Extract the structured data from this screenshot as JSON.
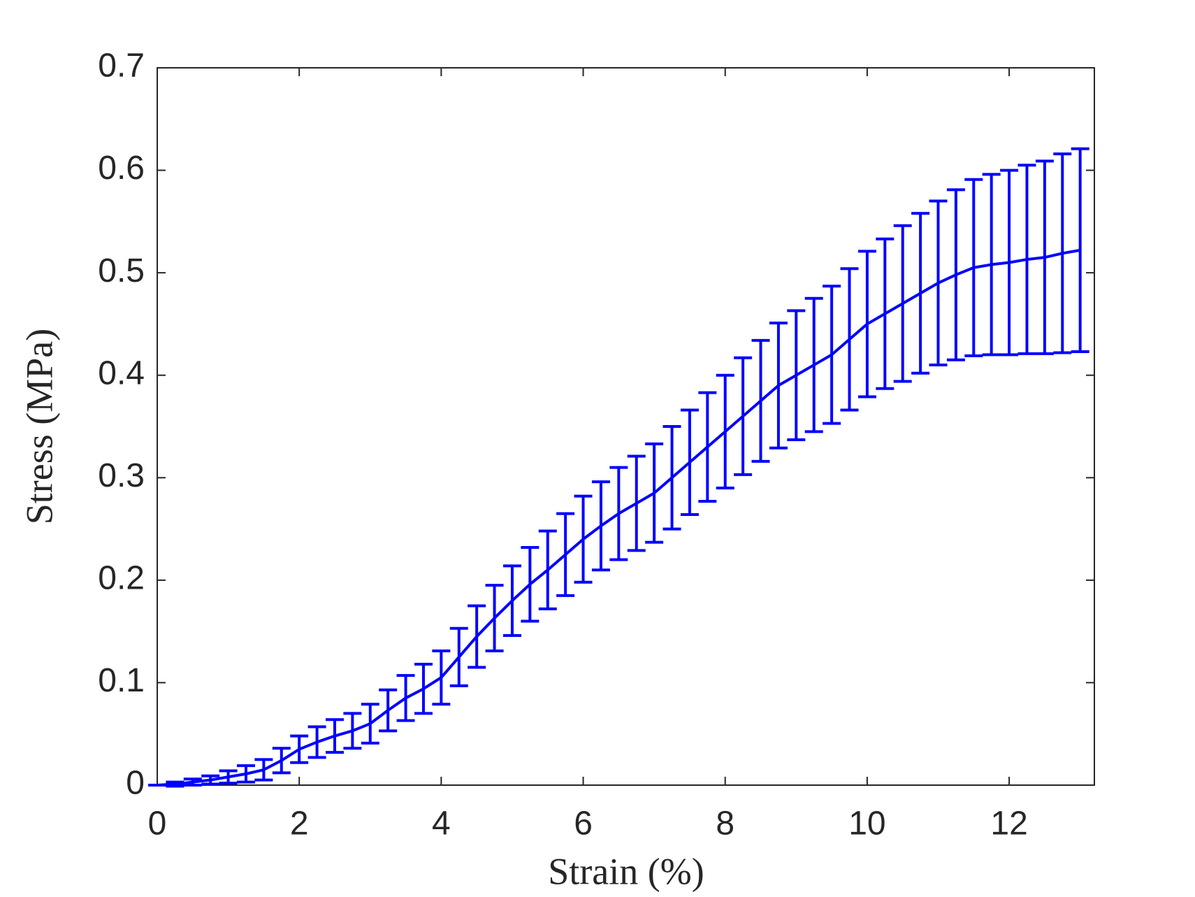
{
  "chart_data": {
    "type": "errorbar",
    "xlabel": "Strain (%)",
    "ylabel": "Stress (MPa)",
    "x": [
      0,
      0.25,
      0.5,
      0.75,
      1,
      1.25,
      1.5,
      1.75,
      2,
      2.25,
      2.5,
      2.75,
      3,
      3.25,
      3.5,
      3.75,
      4,
      4.25,
      4.5,
      4.75,
      5,
      5.25,
      5.5,
      5.75,
      6,
      6.25,
      6.5,
      6.75,
      7,
      7.25,
      7.5,
      7.75,
      8,
      8.25,
      8.5,
      8.75,
      9,
      9.25,
      9.5,
      9.75,
      10,
      10.25,
      10.5,
      10.75,
      11,
      11.25,
      11.5,
      11.75,
      12,
      12.25,
      12.5,
      12.75,
      13
    ],
    "series": [
      {
        "color": "#0000ff",
        "values": [
          0,
          0.001,
          0.003,
          0.005,
          0.008,
          0.011,
          0.015,
          0.024,
          0.035,
          0.042,
          0.048,
          0.053,
          0.06,
          0.073,
          0.085,
          0.094,
          0.105,
          0.125,
          0.145,
          0.163,
          0.18,
          0.196,
          0.21,
          0.225,
          0.24,
          0.253,
          0.265,
          0.275,
          0.285,
          0.3,
          0.315,
          0.33,
          0.345,
          0.36,
          0.375,
          0.39,
          0.4,
          0.41,
          0.42,
          0.435,
          0.45,
          0.46,
          0.47,
          0.48,
          0.49,
          0.498,
          0.505,
          0.508,
          0.51,
          0.513,
          0.515,
          0.519,
          0.522
        ],
        "errors": [
          0,
          0.002,
          0.003,
          0.004,
          0.006,
          0.008,
          0.01,
          0.012,
          0.013,
          0.015,
          0.016,
          0.017,
          0.019,
          0.02,
          0.022,
          0.024,
          0.026,
          0.028,
          0.03,
          0.032,
          0.034,
          0.036,
          0.038,
          0.04,
          0.042,
          0.043,
          0.045,
          0.046,
          0.048,
          0.05,
          0.051,
          0.053,
          0.055,
          0.057,
          0.059,
          0.061,
          0.063,
          0.065,
          0.067,
          0.069,
          0.071,
          0.073,
          0.076,
          0.078,
          0.08,
          0.083,
          0.086,
          0.088,
          0.09,
          0.092,
          0.094,
          0.097,
          0.099
        ]
      }
    ],
    "xlim": [
      0,
      13.2
    ],
    "ylim": [
      0,
      0.7
    ],
    "xticks": [
      0,
      2,
      4,
      6,
      8,
      10,
      12
    ],
    "yticks": [
      0,
      0.1,
      0.2,
      0.3,
      0.4,
      0.5,
      0.6,
      0.7
    ],
    "grid": false
  }
}
